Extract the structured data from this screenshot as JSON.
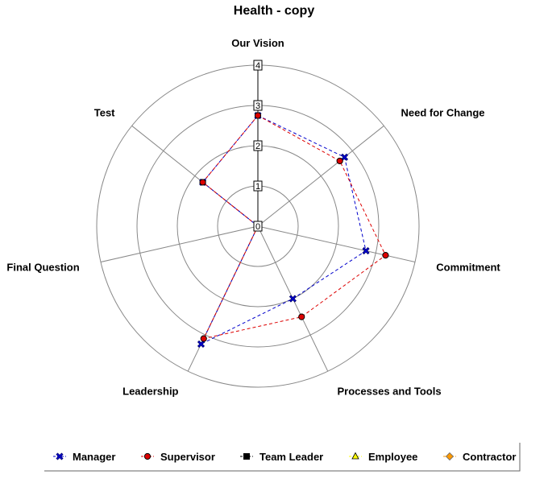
{
  "chart_data": {
    "type": "radar",
    "title": "Health - copy",
    "axes": [
      "Our Vision",
      "Need for Change",
      "Commitment",
      "Processes and Tools",
      "Leadership",
      "Final Question",
      "Test"
    ],
    "rlim": [
      0,
      4
    ],
    "ticks": [
      "0",
      "1",
      "2",
      "3",
      "4"
    ],
    "grid": true,
    "legend_position": "bottom",
    "series": [
      {
        "name": "Manager",
        "values": [
          2.75,
          2.75,
          2.75,
          2.0,
          3.25,
          0,
          1.75
        ],
        "color": "#0000cc",
        "marker": "x"
      },
      {
        "name": "Supervisor",
        "values": [
          2.75,
          2.6,
          3.25,
          2.5,
          3.1,
          0,
          1.75
        ],
        "color": "#dd0000",
        "marker": "circle"
      },
      {
        "name": "Team Leader",
        "values": [],
        "color": "#000000",
        "marker": "square"
      },
      {
        "name": "Employee",
        "values": [],
        "color": "#ffff00",
        "marker": "triangle"
      },
      {
        "name": "Contractor",
        "values": [],
        "color": "#ff9900",
        "marker": "diamond"
      }
    ]
  }
}
